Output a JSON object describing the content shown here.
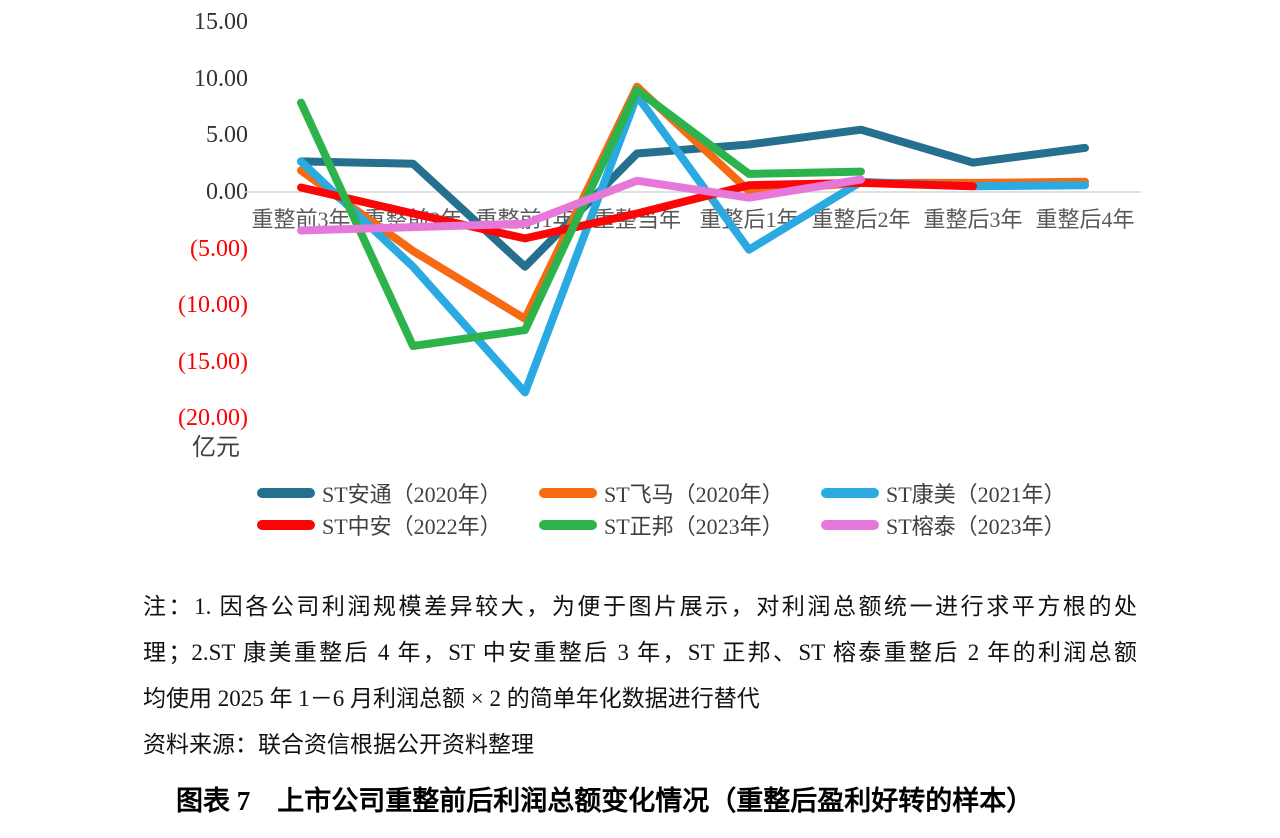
{
  "chart_data": {
    "type": "line",
    "title": "图表 7　上市公司重整前后利润总额变化情况（重整后盈利好转的样本）",
    "unit_label": "亿元",
    "ylim": [
      -20,
      15
    ],
    "grid": "zero-line-only",
    "legend_position": "bottom",
    "axis_label_color": "#595959",
    "tick_color": "#333333",
    "tick_negative_color": "#FF0000",
    "zero_line_color": "#D6D6D6",
    "y_ticks": [
      {
        "label": "15.00",
        "value": 15
      },
      {
        "label": "10.00",
        "value": 10
      },
      {
        "label": "5.00",
        "value": 5
      },
      {
        "label": "0.00",
        "value": 0
      },
      {
        "label": "(5.00)",
        "value": -5
      },
      {
        "label": "(10.00)",
        "value": -10
      },
      {
        "label": "(15.00)",
        "value": -15
      },
      {
        "label": "(20.00)",
        "value": -20
      }
    ],
    "categories": [
      "重整前3年",
      "重整前2年",
      "重整前1年",
      "重整当年",
      "重整后1年",
      "重整后2年",
      "重整后3年",
      "重整后4年"
    ],
    "series": [
      {
        "name": "ST安通（2020年）",
        "color": "#26708F",
        "values": [
          2.7,
          2.5,
          -6.6,
          3.4,
          4.2,
          5.5,
          2.6,
          3.9
        ]
      },
      {
        "name": "ST飞马（2020年）",
        "color": "#F56A13",
        "values": [
          1.9,
          -5.2,
          -11.2,
          9.3,
          0.1,
          0.8,
          0.8,
          0.9
        ]
      },
      {
        "name": "ST康美（2021年）",
        "color": "#2BAAE2",
        "values": [
          2.7,
          -6.6,
          -17.7,
          8.5,
          -5.1,
          0.9,
          0.5,
          0.6
        ]
      },
      {
        "name": "ST中安（2022年）",
        "color": "#FA0606",
        "values": [
          0.4,
          -1.9,
          -4.1,
          -1.9,
          0.6,
          0.8,
          0.5,
          null
        ]
      },
      {
        "name": "ST正邦（2023年）",
        "color": "#2CB34C",
        "values": [
          7.9,
          -13.6,
          -12.2,
          9.0,
          1.6,
          1.8,
          null,
          null
        ]
      },
      {
        "name": "ST榕泰（2023年）",
        "color": "#E678D9",
        "values": [
          -3.4,
          -3.1,
          -2.8,
          1.0,
          -0.5,
          1.1,
          null,
          null
        ]
      }
    ]
  },
  "notes": {
    "line1": "注：1. 因各公司利润规模差异较大，为便于图片展示，对利润总额统一进行求平方根的处",
    "line2": "理；2.ST 康美重整后 4 年，ST 中安重整后 3 年，ST 正邦、ST 榕泰重整后 2 年的利润总额",
    "line3": "均使用 2025 年 1－6 月利润总额 × 2 的简单年化数据进行替代",
    "source": "资料来源：联合资信根据公开资料整理"
  },
  "caption": {
    "text": "图表 7　上市公司重整前后利润总额变化情况（重整后盈利好转的样本）"
  }
}
